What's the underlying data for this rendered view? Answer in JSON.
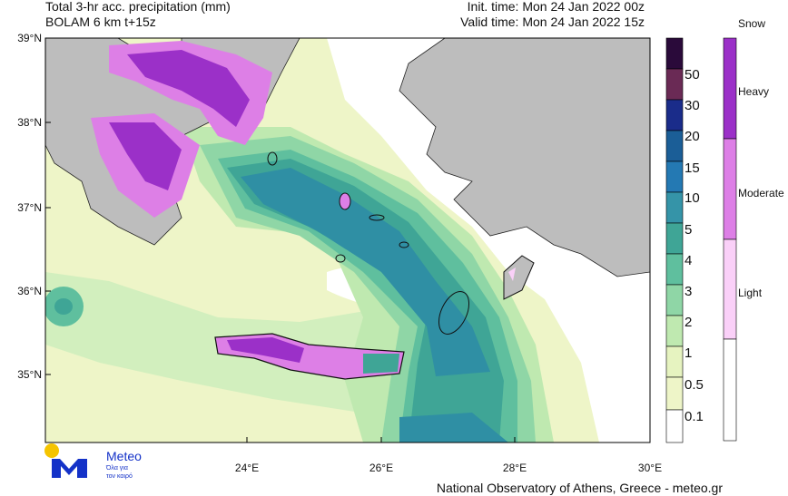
{
  "header": {
    "title": "Total 3-hr acc. precipitation (mm)",
    "model": "BOLAM 6 km t+15z",
    "init_time": "Init. time: Mon 24 Jan 2022 00z",
    "valid_time": "Valid time: Mon 24 Jan 2022 15z"
  },
  "map": {
    "lat_labels": [
      "39°N",
      "38°N",
      "37°N",
      "36°N",
      "35°N"
    ],
    "lon_labels": [
      "24°E",
      "26°E",
      "28°E",
      "30°E"
    ]
  },
  "precip_legend": {
    "levels": [
      "0.1",
      "0.5",
      "1",
      "2",
      "3",
      "4",
      "5",
      "10",
      "15",
      "20",
      "30",
      "50"
    ]
  },
  "snow_legend": {
    "title": "Snow",
    "levels": [
      "Heavy",
      "Moderate",
      "Light"
    ]
  },
  "logo": {
    "name": "Meteo",
    "tagline": [
      "Όλα για",
      "τον καιρό"
    ]
  },
  "footer": "National Observatory of Athens, Greece - meteo.gr"
}
